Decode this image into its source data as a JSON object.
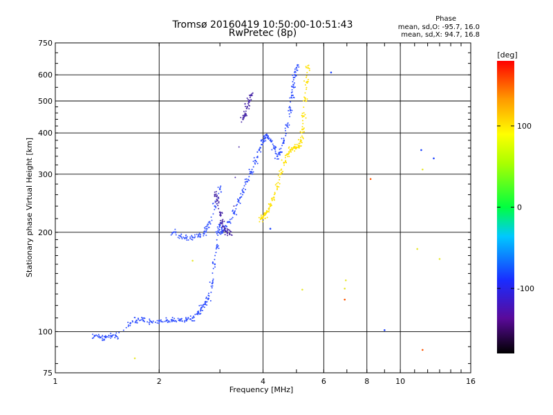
{
  "chart_data": {
    "type": "scatter",
    "title": "Tromsø 20160419 10:50:00-10:51:43",
    "subtitle": "RwPretec (8p)",
    "xlabel": "Frequency [MHz]",
    "ylabel": "Stationary phase Virtual Height [km]",
    "x_scale": "log2",
    "y_scale": "log",
    "xlim": [
      1,
      16
    ],
    "ylim": [
      75,
      750
    ],
    "x_ticks": [
      1,
      2,
      4,
      6,
      8,
      10,
      16
    ],
    "x_tick_labels": [
      "1",
      "2",
      "4",
      "6",
      "8",
      "10",
      "16"
    ],
    "y_ticks": [
      75,
      100,
      200,
      300,
      400,
      500,
      600,
      750
    ],
    "y_tick_labels": [
      "75",
      "100",
      "200",
      "300",
      "400",
      "500",
      "600",
      "750"
    ],
    "grid": true,
    "phase_info": {
      "heading": "Phase",
      "o_mode": "mean, sd,O: -95.7, 16.0",
      "x_mode": "mean, sd,X:  94.7, 16.8"
    },
    "colorbar": {
      "label": "[deg]",
      "range": [
        -180,
        180
      ],
      "ticks": [
        100,
        0,
        -100
      ],
      "tick_labels": [
        "100",
        "0",
        "-100"
      ]
    },
    "series": [
      {
        "mode": "O",
        "phase": -100,
        "color": "#2b4cff",
        "x": [
          1.3,
          1.35,
          1.4,
          1.45,
          1.5,
          1.65,
          1.72,
          1.8,
          1.9,
          2.0,
          2.1,
          2.2,
          2.3,
          2.4,
          2.5,
          2.6,
          2.65,
          2.72,
          2.78,
          2.85,
          2.9,
          2.94,
          2.97,
          3.0,
          3.05,
          3.1,
          3.2,
          3.3,
          3.4,
          3.5,
          3.6,
          3.7,
          3.8,
          3.9,
          4.0,
          4.05,
          4.1,
          4.2,
          4.3,
          4.4,
          4.5,
          4.6,
          4.7,
          4.8,
          4.85,
          4.9,
          4.95,
          5.0
        ],
        "y": [
          97,
          96,
          96,
          97,
          97,
          106,
          108,
          108,
          107,
          108,
          108,
          108,
          108,
          108,
          110,
          114,
          118,
          121,
          126,
          140,
          160,
          180,
          200,
          210,
          200,
          205,
          215,
          230,
          250,
          265,
          285,
          305,
          330,
          355,
          375,
          385,
          395,
          380,
          360,
          340,
          350,
          380,
          420,
          470,
          520,
          560,
          600,
          630
        ]
      },
      {
        "mode": "O-upper",
        "phase": -100,
        "color": "#3d5cff",
        "x": [
          2.2,
          2.3,
          2.4,
          2.5,
          2.6,
          2.7,
          2.75,
          2.8,
          2.9,
          3.0
        ],
        "y": [
          200,
          195,
          192,
          193,
          195,
          198,
          205,
          215,
          240,
          270
        ]
      },
      {
        "mode": "O-scatter",
        "phase": -120,
        "color": "#4a2aa8",
        "x": [
          2.9,
          2.95,
          3.0,
          3.05,
          3.1,
          3.15,
          3.2,
          3.5,
          3.55,
          3.6,
          3.65,
          3.7
        ],
        "y": [
          260,
          250,
          230,
          215,
          205,
          200,
          198,
          440,
          455,
          480,
          500,
          520
        ]
      },
      {
        "mode": "X",
        "phase": 95,
        "color": "#ffe100",
        "x": [
          3.95,
          4.0,
          4.05,
          4.1,
          4.2,
          4.3,
          4.4,
          4.5,
          4.6,
          4.7,
          4.8,
          4.9,
          5.0,
          5.1,
          5.15,
          5.2,
          5.25,
          5.3,
          5.35,
          5.4
        ],
        "y": [
          220,
          222,
          226,
          230,
          240,
          255,
          275,
          300,
          325,
          345,
          355,
          360,
          362,
          365,
          380,
          410,
          450,
          510,
          570,
          630
        ]
      },
      {
        "mode": "isolated",
        "phase": 90,
        "color": "#e8e830",
        "x": [
          5.2,
          6.9,
          6.95,
          11.2,
          11.6,
          13.0,
          1.7,
          2.5
        ],
        "y": [
          134,
          135,
          143,
          178,
          310,
          166,
          83,
          164
        ]
      },
      {
        "mode": "isolated-red",
        "phase": 150,
        "color": "#ff5500",
        "x": [
          8.2,
          6.9,
          11.6
        ],
        "y": [
          290,
          125,
          88
        ]
      },
      {
        "mode": "isolated-blue",
        "phase": -100,
        "color": "#1a40ff",
        "x": [
          6.3,
          9.0,
          11.5,
          12.5,
          4.2
        ],
        "y": [
          610,
          101,
          355,
          335,
          205
        ]
      }
    ]
  }
}
